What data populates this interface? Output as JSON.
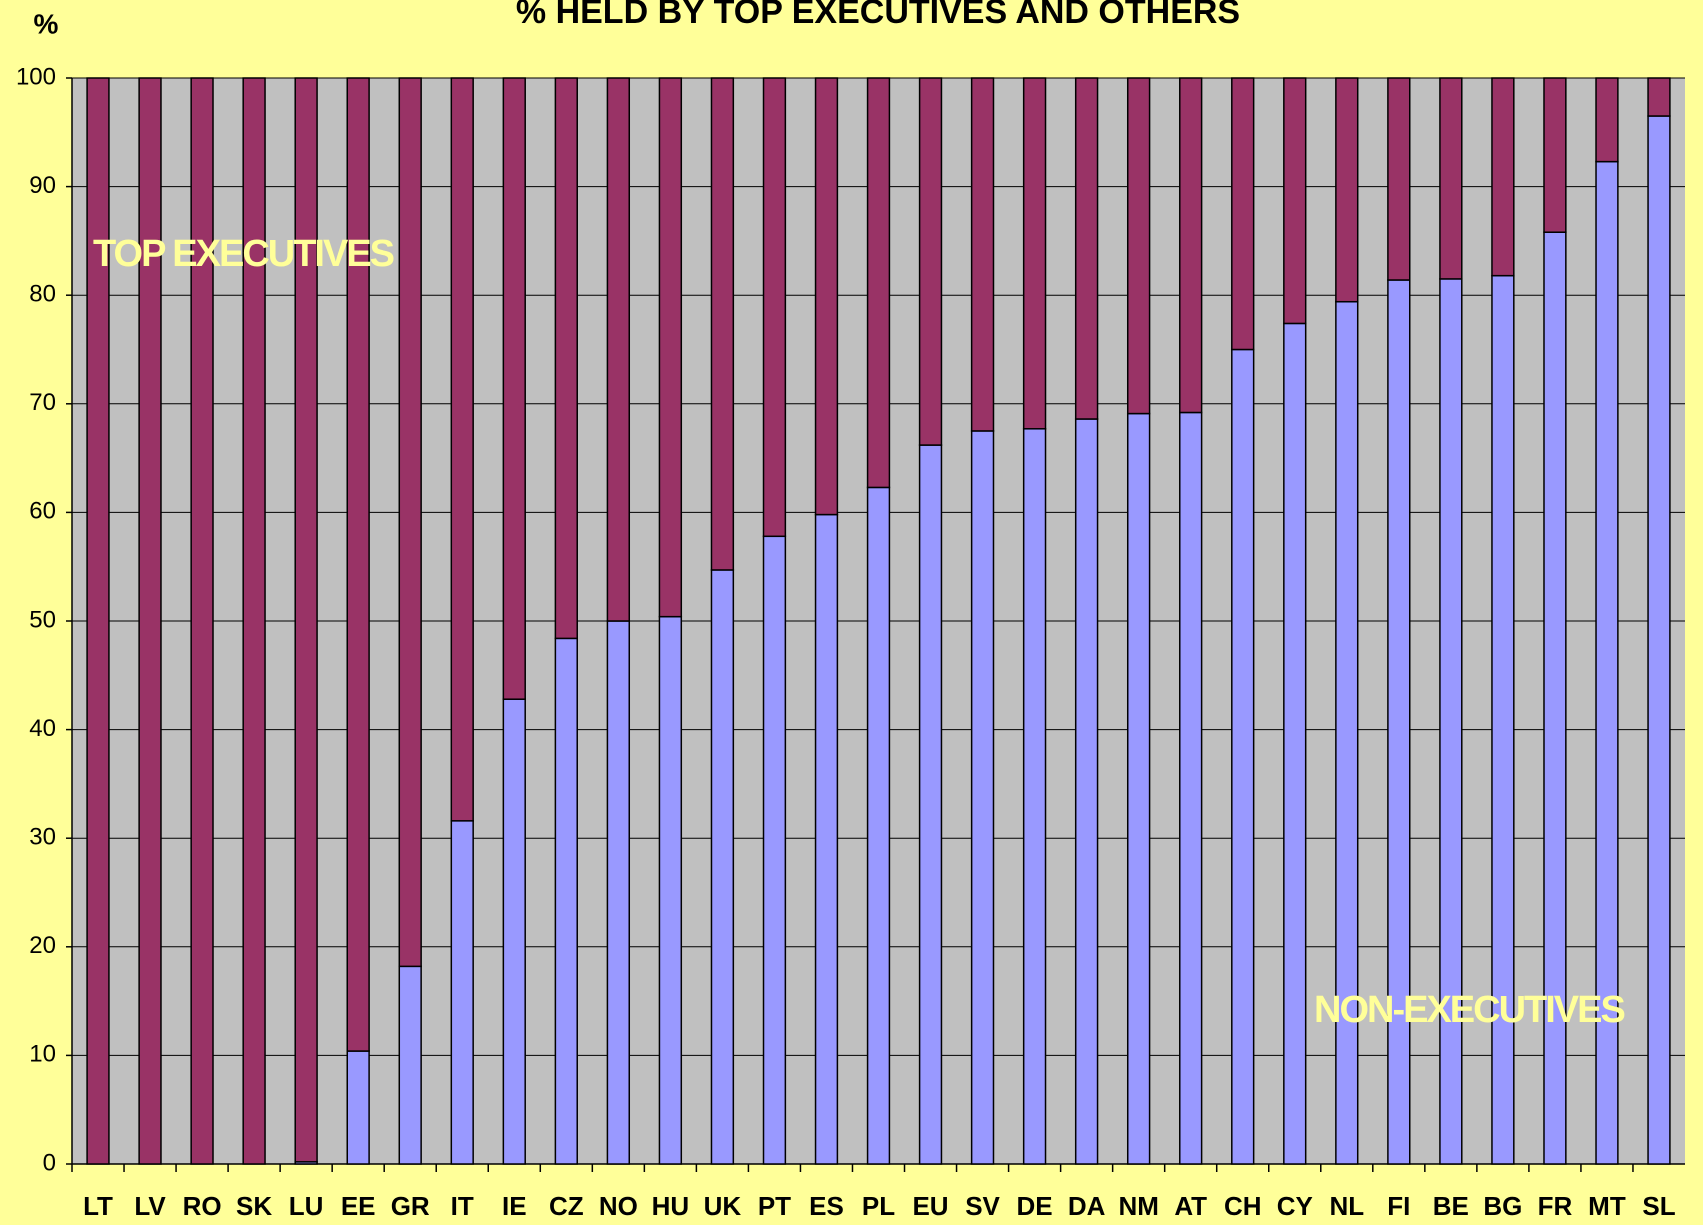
{
  "chart_data": {
    "type": "stacked-bar",
    "title": "% HELD BY TOP EXECUTIVES AND OTHERS",
    "y_label": "%",
    "categories": [
      "LT",
      "LV",
      "RO",
      "SK",
      "LU",
      "EE",
      "GR",
      "IT",
      "IE",
      "CZ",
      "NO",
      "HU",
      "UK",
      "PT",
      "ES",
      "PL",
      "EU",
      "SV",
      "DE",
      "DA",
      "NM",
      "AT",
      "CH",
      "CY",
      "NL",
      "FI",
      "BE",
      "BG",
      "FR",
      "MT",
      "SL"
    ],
    "series": [
      {
        "name": "NON-EXECUTIVES",
        "color": "#9999ff",
        "values": [
          0,
          0,
          0,
          0,
          0.2,
          10.4,
          18.2,
          31.6,
          42.8,
          48.4,
          50,
          50.4,
          54.7,
          57.8,
          59.8,
          62.3,
          66.2,
          67.5,
          67.7,
          68.6,
          69.1,
          69.2,
          75,
          77.4,
          79.4,
          81.4,
          81.5,
          81.8,
          85.8,
          92.3,
          96.5
        ]
      },
      {
        "name": "TOP EXECUTIVES",
        "color": "#993366",
        "values": [
          100,
          100,
          100,
          100,
          99.8,
          89.6,
          81.8,
          68.4,
          57.2,
          51.6,
          50,
          49.6,
          45.3,
          42.2,
          40.2,
          37.7,
          33.8,
          32.5,
          32.3,
          31.4,
          30.9,
          30.8,
          25,
          22.6,
          20.6,
          18.6,
          18.5,
          18.2,
          14.2,
          7.7,
          3.5
        ]
      }
    ],
    "ylim": [
      0,
      100
    ],
    "yticks": [
      0,
      10,
      20,
      30,
      40,
      50,
      60,
      70,
      80,
      90,
      100
    ],
    "grid": true
  }
}
